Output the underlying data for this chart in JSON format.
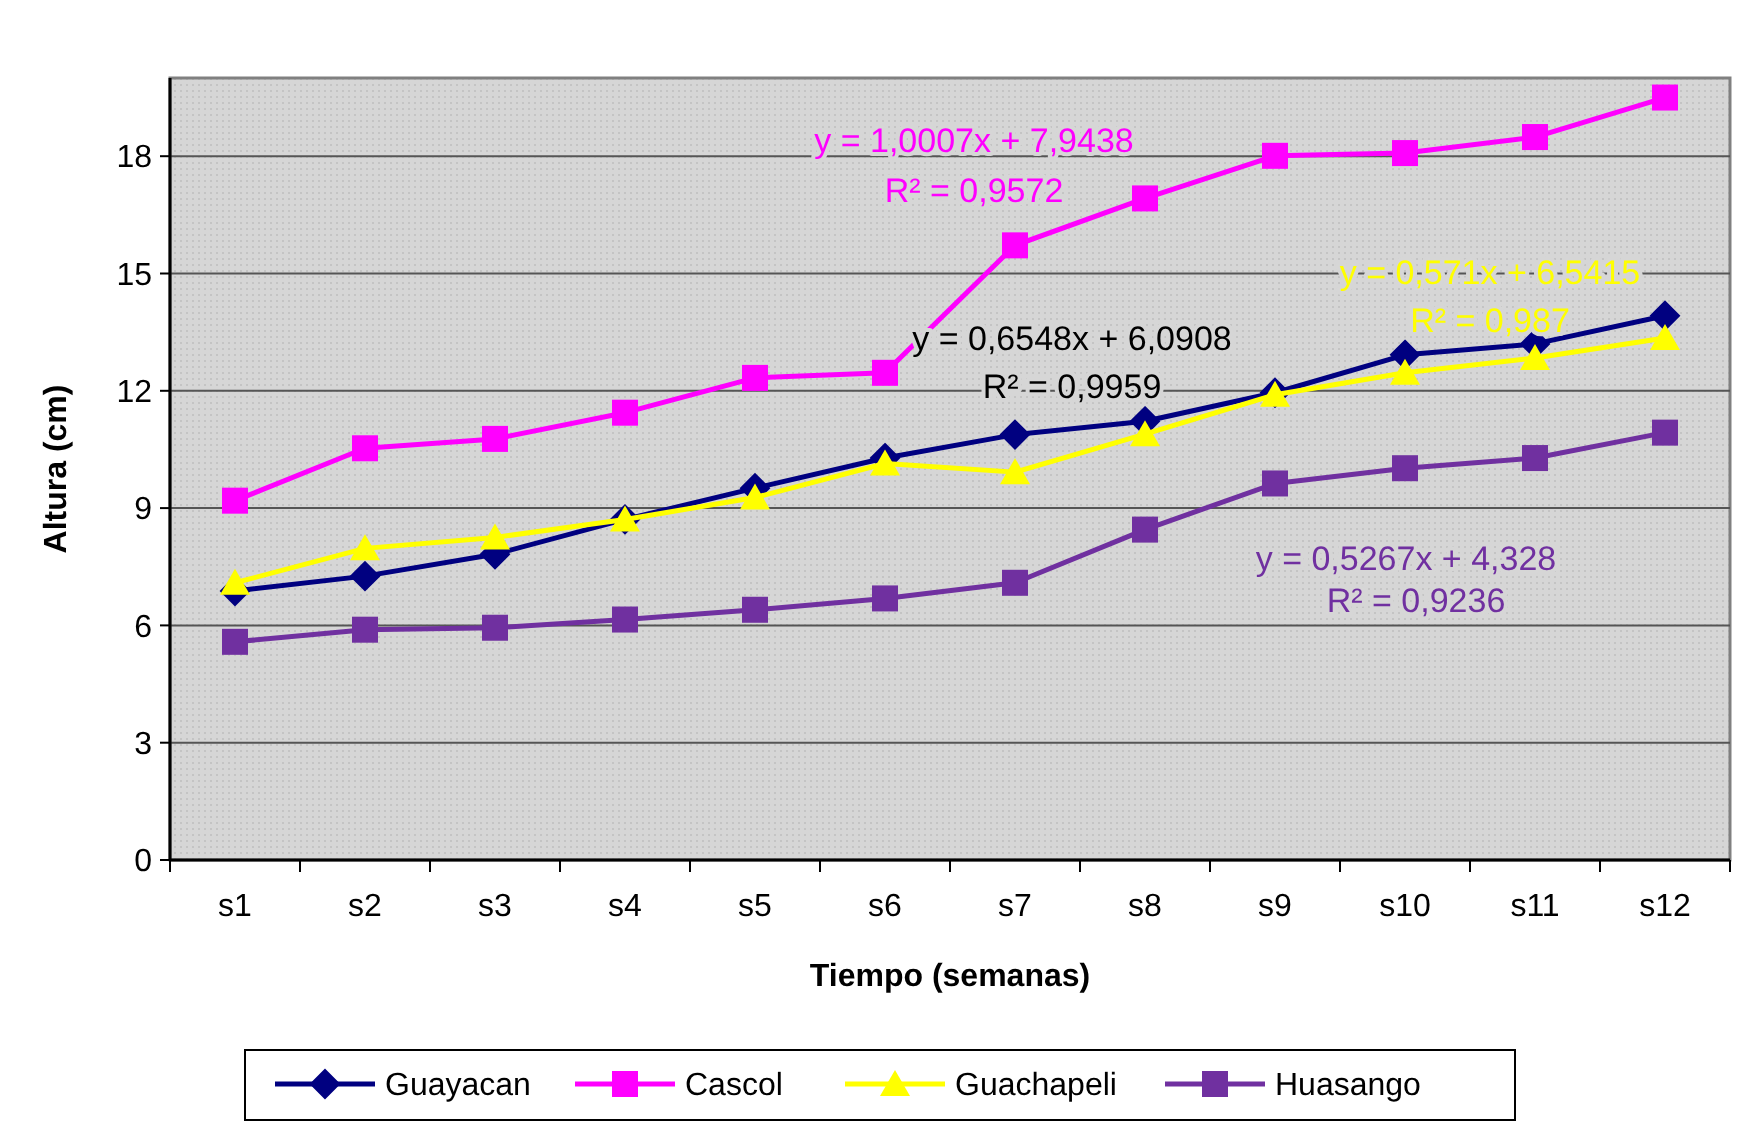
{
  "chart_data": {
    "type": "line",
    "xlabel": "Tiempo (semanas)",
    "ylabel": "Altura (cm)",
    "categories": [
      "s1",
      "s2",
      "s3",
      "s4",
      "s5",
      "s6",
      "s7",
      "s8",
      "s9",
      "s10",
      "s11",
      "s12"
    ],
    "series": [
      {
        "name": "Guayacan",
        "color": "#000080",
        "marker": "diamond",
        "values": [
          6.88,
          7.26,
          7.82,
          8.71,
          9.51,
          10.28,
          10.88,
          11.22,
          11.95,
          12.92,
          13.2,
          13.92
        ]
      },
      {
        "name": "Cascol",
        "color": "#ff00ff",
        "marker": "square",
        "values": [
          9.19,
          10.53,
          10.77,
          11.44,
          12.33,
          12.46,
          15.72,
          16.92,
          18.01,
          18.08,
          18.49,
          19.5
        ]
      },
      {
        "name": "Guachapeli",
        "color": "#ffff00",
        "marker": "triangle",
        "values": [
          7.09,
          7.97,
          8.25,
          8.71,
          9.27,
          10.14,
          9.92,
          10.89,
          11.9,
          12.46,
          12.84,
          13.35
        ]
      },
      {
        "name": "Huasango",
        "color": "#7030a0",
        "marker": "square",
        "values": [
          5.58,
          5.89,
          5.94,
          6.15,
          6.4,
          6.69,
          7.09,
          8.45,
          9.63,
          10.02,
          10.28,
          10.93
        ]
      }
    ],
    "ylim": [
      0,
      20
    ],
    "yticks": [
      0,
      3,
      6,
      9,
      12,
      15,
      18
    ],
    "grid": "y",
    "legend": "bottom",
    "line_style": "solid",
    "annotations": [
      "y = 1,0007x + 7,9438",
      "R² = 0,9572",
      "y = 0,6548x + 6,0908",
      "R² = 0,9959",
      "y = 0,571x + 6,5415",
      "R² = 0,987",
      "y = 0,5267x + 4,328",
      "R² = 0,9236"
    ]
  }
}
